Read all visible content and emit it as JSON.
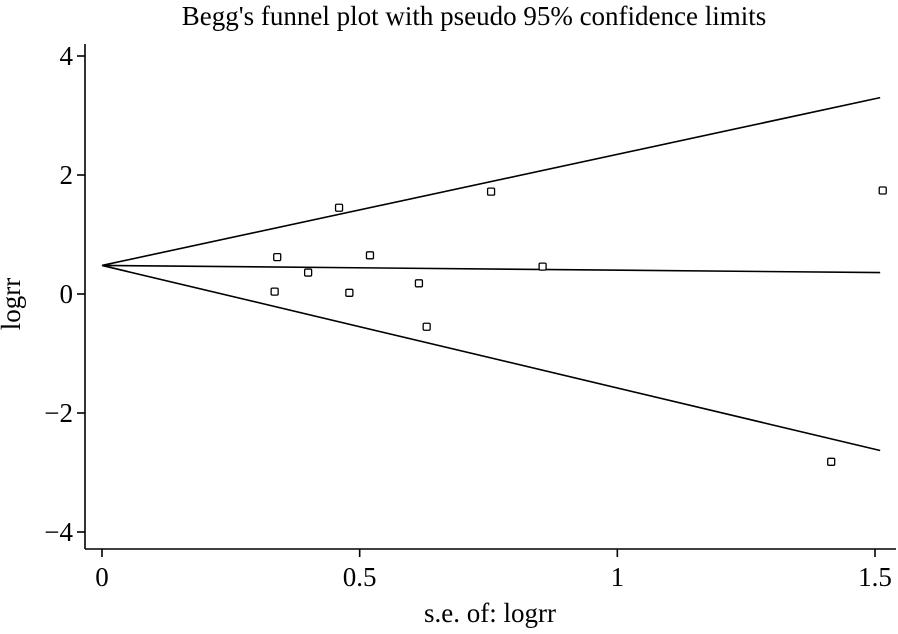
{
  "chart_data": {
    "type": "scatter",
    "title": "Begg's funnel plot with pseudo 95% confidence limits",
    "xlabel": "s.e. of: logrr",
    "ylabel": "logrr",
    "xlim": [
      -0.04,
      1.54
    ],
    "ylim": [
      -4.25,
      4.3
    ],
    "x_ticks": [
      0,
      0.5,
      1,
      1.5
    ],
    "x_tick_labels": [
      "0",
      "0.5",
      "1",
      "1.5"
    ],
    "y_ticks": [
      -4,
      -2,
      0,
      2,
      4
    ],
    "y_tick_labels": [
      "−4",
      "−2",
      "0",
      "2",
      "4"
    ],
    "grid": false,
    "colors": {
      "lines": "#000000",
      "markers": "#000000",
      "background": "#ffffff"
    },
    "series": [
      {
        "kind": "points",
        "marker": "hollow-square",
        "points": [
          {
            "x": 0.335,
            "y": 0.04
          },
          {
            "x": 0.34,
            "y": 0.62
          },
          {
            "x": 0.4,
            "y": 0.36
          },
          {
            "x": 0.46,
            "y": 1.45
          },
          {
            "x": 0.48,
            "y": 0.02
          },
          {
            "x": 0.52,
            "y": 0.65
          },
          {
            "x": 0.615,
            "y": 0.18
          },
          {
            "x": 0.63,
            "y": -0.55
          },
          {
            "x": 0.755,
            "y": 1.72
          },
          {
            "x": 0.855,
            "y": 0.46
          },
          {
            "x": 1.415,
            "y": -2.82
          },
          {
            "x": 1.515,
            "y": 1.74
          }
        ]
      },
      {
        "kind": "line",
        "role": "pooled estimate",
        "points": [
          {
            "x": 0,
            "y": 0.48
          },
          {
            "x": 1.51,
            "y": 0.36
          }
        ]
      },
      {
        "kind": "line",
        "role": "upper pseudo 95% limit",
        "points": [
          {
            "x": 0,
            "y": 0.48
          },
          {
            "x": 1.51,
            "y": 3.3
          }
        ]
      },
      {
        "kind": "line",
        "role": "lower pseudo 95% limit",
        "points": [
          {
            "x": 0,
            "y": 0.48
          },
          {
            "x": 1.51,
            "y": -2.63
          }
        ]
      }
    ]
  }
}
